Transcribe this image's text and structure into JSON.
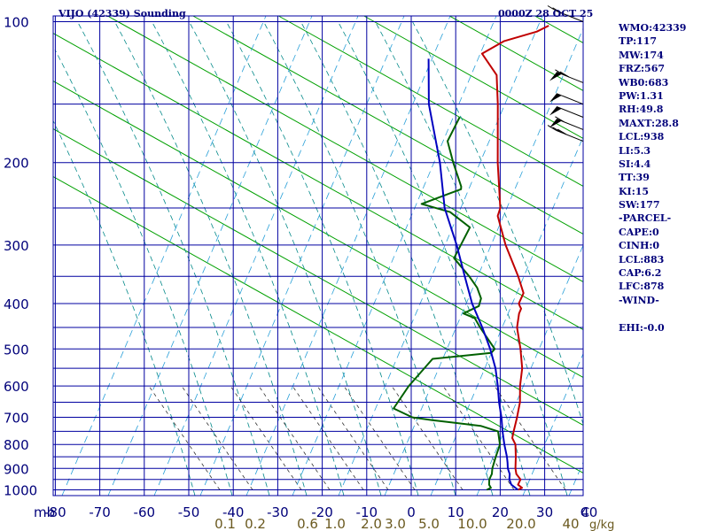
{
  "header": {
    "title": "VIJO (42339) Sounding",
    "datetime": "0000Z 28 OCT 25"
  },
  "indices": [
    "WMO:42339",
    "TP:117",
    "MW:174",
    "FRZ:567",
    "WB0:683",
    "PW:1.31",
    "RH:49.8",
    "MAXT:28.8",
    "LCL:938",
    "LI:5.3",
    "SI:4.4",
    "TT:39",
    "KI:15",
    "SW:177",
    "-PARCEL-",
    "CAPE:0",
    "CINH:0",
    "LCL:883",
    "CAP:6.2",
    "LFC:878",
    "-WIND-",
    "",
    "EHI:-0.0"
  ],
  "colors": {
    "grid": "#0000a0",
    "dry_adiabat": "#00a000",
    "moist_adiabat": "#008888",
    "mixing_ratio": "#2aa0d8",
    "temperature": "#c00000",
    "dewpoint": "#006000",
    "parcel": "#0000c0",
    "mixing_label": "#6b5a20",
    "axis_label": "#00007a"
  },
  "chart_data": {
    "type": "skew-t",
    "title": "VIJO (42339) Sounding",
    "datetime": "0000Z 28 OCT 25",
    "pressure_unit": "mb",
    "pressure_range": [
      1000,
      100
    ],
    "pressure_ticks": [
      100,
      200,
      300,
      400,
      500,
      600,
      700,
      800,
      900,
      1000
    ],
    "pressure_lines": [
      100,
      150,
      200,
      250,
      300,
      350,
      400,
      450,
      500,
      550,
      600,
      650,
      700,
      750,
      800,
      850,
      900,
      950,
      1000
    ],
    "temperature_ticks": [
      -80,
      -70,
      -60,
      -50,
      -40,
      -30,
      -20,
      -10,
      0,
      10,
      20,
      30,
      40
    ],
    "temperature_tick_labels": [
      "-80",
      "-70",
      "-60",
      "-50",
      "-40",
      "-30",
      "-20",
      "-10",
      "0",
      "10",
      "20",
      "30",
      "40"
    ],
    "temperature_unit_label": "C",
    "mixing_ratio_labels": [
      "0.1",
      "0.2",
      "0.6",
      "1.0",
      "2.0",
      "3.0",
      "5.0",
      "10.0",
      "20.0",
      "40"
    ],
    "mixing_ratio_unit": "g/kg",
    "series": [
      {
        "name": "Temperature",
        "points": [
          [
            1000,
            24
          ],
          [
            990,
            24.5
          ],
          [
            975,
            23
          ],
          [
            950,
            22.5
          ],
          [
            925,
            20.5
          ],
          [
            900,
            19.2
          ],
          [
            850,
            17
          ],
          [
            800,
            14.5
          ],
          [
            775,
            12.5
          ],
          [
            750,
            11.5
          ],
          [
            700,
            9.5
          ],
          [
            650,
            7.2
          ],
          [
            600,
            4
          ],
          [
            550,
            1
          ],
          [
            500,
            -3.2
          ],
          [
            450,
            -8.2
          ],
          [
            420,
            -10.5
          ],
          [
            410,
            -11
          ],
          [
            405,
            -11.8
          ],
          [
            400,
            -12.5
          ],
          [
            380,
            -13.5
          ],
          [
            350,
            -18
          ],
          [
            300,
            -27
          ],
          [
            260,
            -34.5
          ],
          [
            250,
            -35.5
          ],
          [
            200,
            -45
          ],
          [
            150,
            -56.5
          ],
          [
            130,
            -62.5
          ],
          [
            117,
            -70
          ],
          [
            110,
            -67.5
          ],
          [
            105,
            -62
          ],
          [
            102,
            -60.5
          ]
        ]
      },
      {
        "name": "Dewpoint",
        "points": [
          [
            1000,
            17
          ],
          [
            990,
            17.5
          ],
          [
            975,
            16.5
          ],
          [
            950,
            15.5
          ],
          [
            925,
            15
          ],
          [
            900,
            14
          ],
          [
            850,
            12.5
          ],
          [
            800,
            11
          ],
          [
            750,
            8
          ],
          [
            730,
            3
          ],
          [
            710,
            -9
          ],
          [
            700,
            -14
          ],
          [
            670,
            -20
          ],
          [
            600,
            -21
          ],
          [
            525,
            -21
          ],
          [
            510,
            -9
          ],
          [
            500,
            -9
          ],
          [
            450,
            -16.5
          ],
          [
            430,
            -19.5
          ],
          [
            420,
            -23
          ],
          [
            405,
            -21
          ],
          [
            390,
            -22
          ],
          [
            370,
            -25
          ],
          [
            350,
            -29
          ],
          [
            320,
            -36
          ],
          [
            275,
            -38.5
          ],
          [
            255,
            -46
          ],
          [
            245,
            -54
          ],
          [
            228,
            -48
          ],
          [
            225,
            -48.5
          ],
          [
            200,
            -55
          ],
          [
            180,
            -60.5
          ],
          [
            160,
            -62.5
          ]
        ]
      },
      {
        "name": "Parcel",
        "points": [
          [
            1000,
            24
          ],
          [
            975,
            21.5
          ],
          [
            950,
            20
          ],
          [
            925,
            19
          ],
          [
            900,
            17.5
          ],
          [
            875,
            16.3
          ],
          [
            850,
            15
          ],
          [
            800,
            12
          ],
          [
            750,
            9
          ],
          [
            700,
            6
          ],
          [
            650,
            2.5
          ],
          [
            600,
            -1
          ],
          [
            550,
            -5
          ],
          [
            500,
            -10
          ],
          [
            450,
            -16
          ],
          [
            400,
            -23
          ],
          [
            350,
            -30
          ],
          [
            300,
            -38
          ],
          [
            250,
            -48
          ],
          [
            200,
            -58
          ],
          [
            150,
            -72
          ],
          [
            120,
            -81
          ]
        ]
      }
    ],
    "wind_barbs": [
      {
        "pressure": 100,
        "speed_kt": 20
      },
      {
        "pressure": 135,
        "speed_kt": 70
      },
      {
        "pressure": 150,
        "speed_kt": 50
      },
      {
        "pressure": 160,
        "speed_kt": 50
      },
      {
        "pressure": 170,
        "speed_kt": 60
      },
      {
        "pressure": 180,
        "speed_kt": 30
      }
    ],
    "grid": true
  }
}
